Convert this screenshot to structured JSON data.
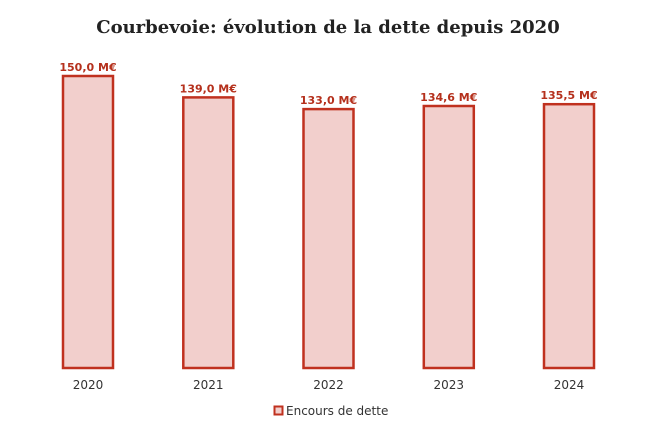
{
  "chart_data": {
    "type": "bar",
    "title": "Courbevoie: évolution de la dette depuis 2020",
    "xlabel": "",
    "ylabel": "",
    "categories": [
      "2020",
      "2021",
      "2022",
      "2023",
      "2024"
    ],
    "series": [
      {
        "name": "Encours de dette",
        "values": [
          150.0,
          139.0,
          133.0,
          134.6,
          135.5
        ],
        "data_labels": [
          "150,0 M€",
          "139,0 M€",
          "133,0 M€",
          "134,6 M€",
          "135,5 M€"
        ]
      }
    ],
    "ylim": [
      0,
      150
    ],
    "grid": false,
    "legend": "bottom",
    "colors": {
      "bar_fill": "#f2cfcc",
      "bar_stroke": "#c0311f",
      "label": "#b5301c"
    }
  }
}
